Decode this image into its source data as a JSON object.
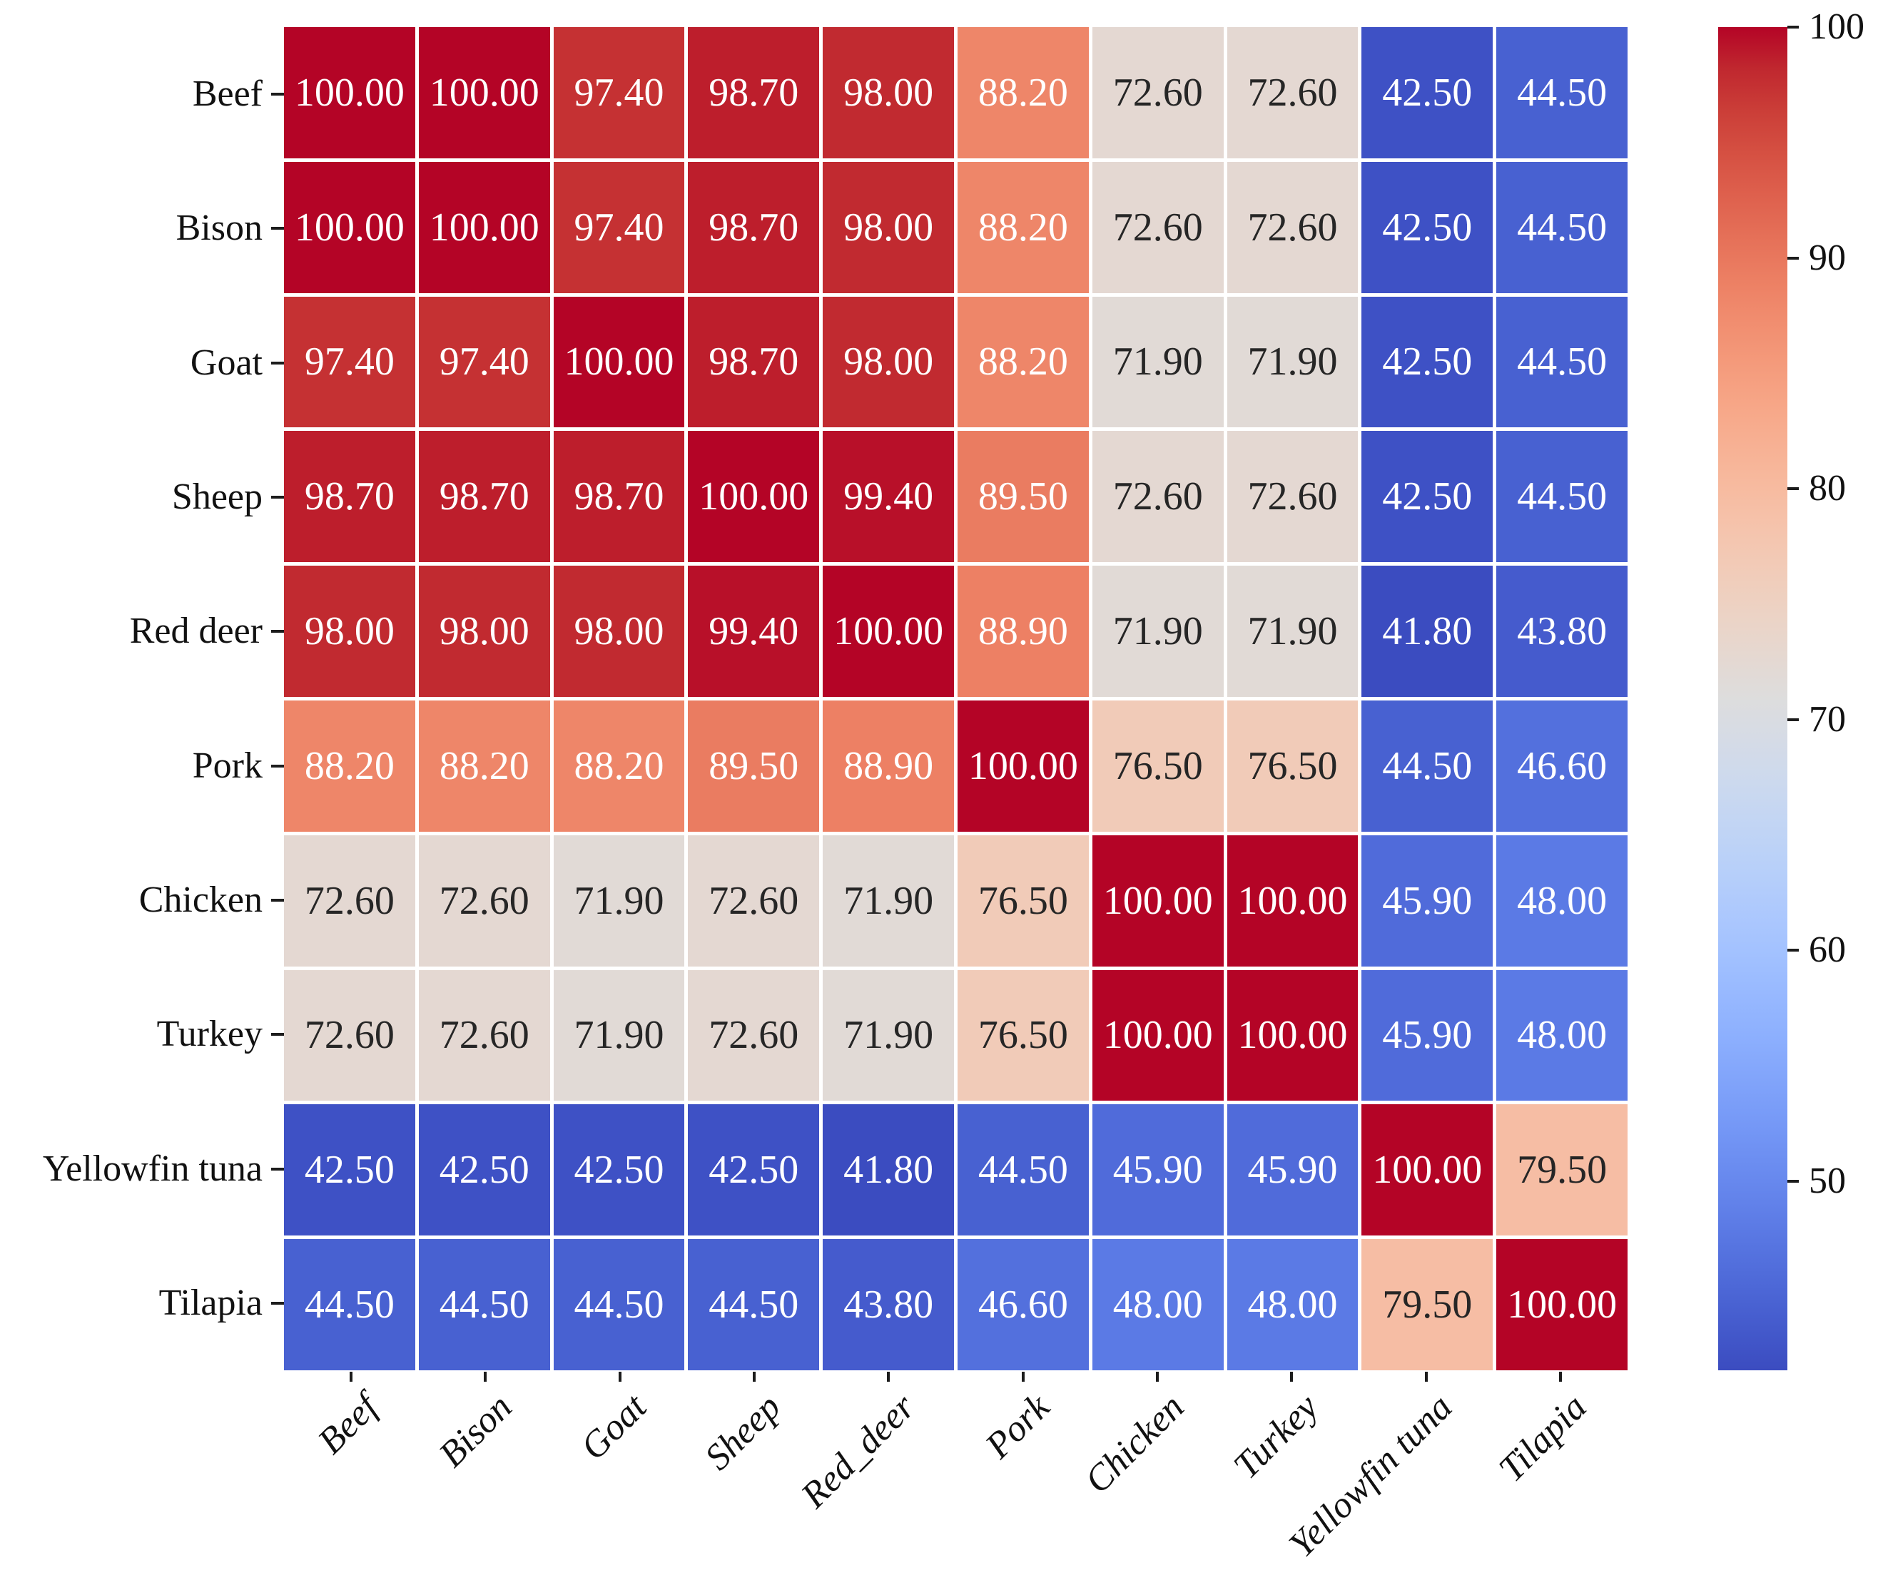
{
  "chart_data": {
    "type": "heatmap",
    "rows": [
      "Beef",
      "Bison",
      "Goat",
      "Sheep",
      "Red deer",
      "Pork",
      "Chicken",
      "Turkey",
      "Yellowfin tuna",
      "Tilapia"
    ],
    "columns": [
      "Beef",
      "Bison",
      "Goat",
      "Sheep",
      "Red_deer",
      "Pork",
      "Chicken",
      "Turkey",
      "Yellowfin tuna",
      "Tilapia"
    ],
    "values": [
      [
        100.0,
        100.0,
        97.4,
        98.7,
        98.0,
        88.2,
        72.6,
        72.6,
        42.5,
        44.5
      ],
      [
        100.0,
        100.0,
        97.4,
        98.7,
        98.0,
        88.2,
        72.6,
        72.6,
        42.5,
        44.5
      ],
      [
        97.4,
        97.4,
        100.0,
        98.7,
        98.0,
        88.2,
        71.9,
        71.9,
        42.5,
        44.5
      ],
      [
        98.7,
        98.7,
        98.7,
        100.0,
        99.4,
        89.5,
        72.6,
        72.6,
        42.5,
        44.5
      ],
      [
        98.0,
        98.0,
        98.0,
        99.4,
        100.0,
        88.9,
        71.9,
        71.9,
        41.8,
        43.8
      ],
      [
        88.2,
        88.2,
        88.2,
        89.5,
        88.9,
        100.0,
        76.5,
        76.5,
        44.5,
        46.6
      ],
      [
        72.6,
        72.6,
        71.9,
        72.6,
        71.9,
        76.5,
        100.0,
        100.0,
        45.9,
        48.0
      ],
      [
        72.6,
        72.6,
        71.9,
        72.6,
        71.9,
        76.5,
        100.0,
        100.0,
        45.9,
        48.0
      ],
      [
        42.5,
        42.5,
        42.5,
        42.5,
        41.8,
        44.5,
        45.9,
        45.9,
        100.0,
        79.5
      ],
      [
        44.5,
        44.5,
        44.5,
        44.5,
        43.8,
        46.6,
        48.0,
        48.0,
        79.5,
        100.0
      ]
    ],
    "value_format": "fixed2",
    "vmin": 41.8,
    "vmax": 100,
    "colormap": "coolwarm",
    "colorbar_ticks": [
      100,
      90,
      80,
      70,
      60,
      50
    ],
    "colorbar_position": "right",
    "grid_line_color": "#ffffff",
    "annotation_color_on_dark": "#ffffff",
    "annotation_color_on_light": "#262626",
    "axis_tick_color": "#1c1c1c",
    "xlabel": "",
    "ylabel": "",
    "title": ""
  }
}
